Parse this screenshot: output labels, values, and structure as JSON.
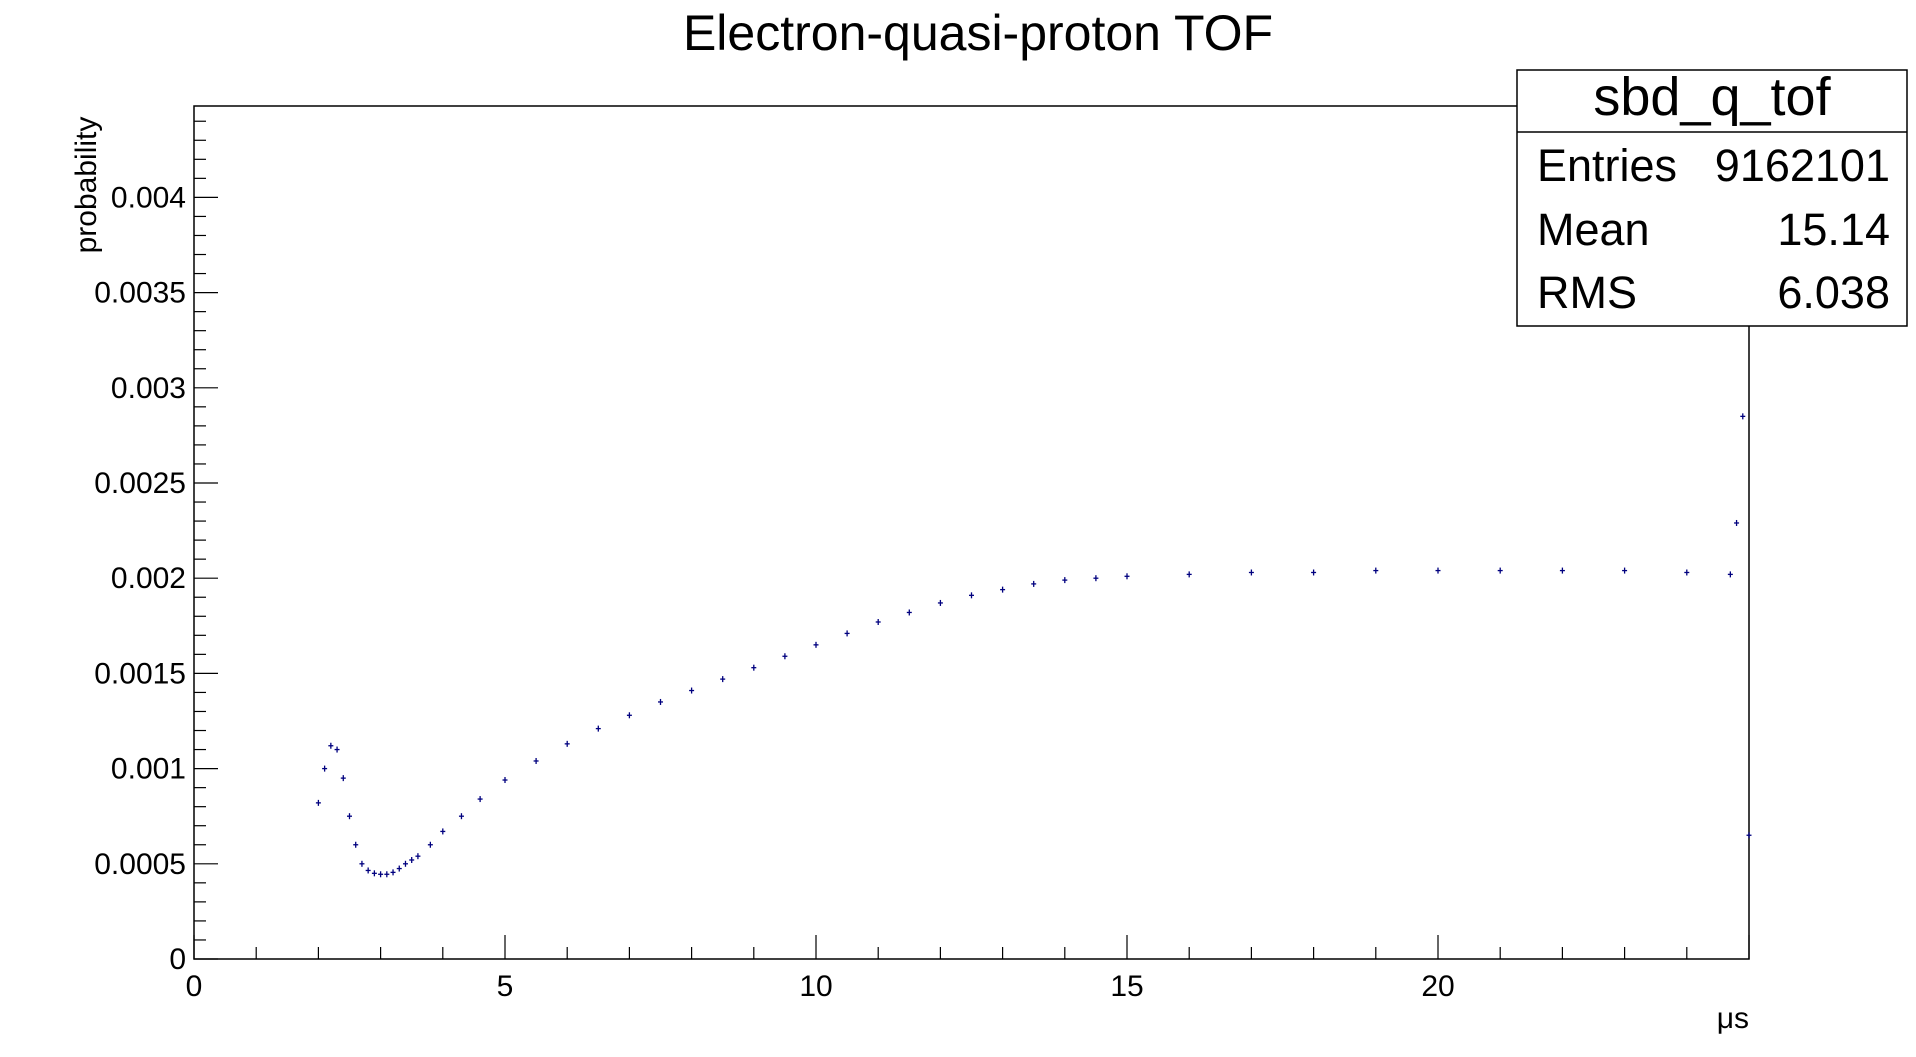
{
  "chart_data": {
    "type": "scatter",
    "title": "Electron-quasi-proton TOF",
    "xlabel": "μs",
    "ylabel": "probability",
    "xlim": [
      0,
      25
    ],
    "ylim": [
      0,
      0.00448
    ],
    "grid": false,
    "legend": "none",
    "marker_color": "#00007f",
    "x_ticks": [
      {
        "value": 0,
        "label": "0"
      },
      {
        "value": 5,
        "label": "5"
      },
      {
        "value": 10,
        "label": "10"
      },
      {
        "value": 15,
        "label": "15"
      },
      {
        "value": 20,
        "label": "20"
      }
    ],
    "y_ticks": [
      {
        "value": 0,
        "label": "0"
      },
      {
        "value": 0.0005,
        "label": "0.0005"
      },
      {
        "value": 0.001,
        "label": "0.001"
      },
      {
        "value": 0.0015,
        "label": "0.0015"
      },
      {
        "value": 0.002,
        "label": "0.002"
      },
      {
        "value": 0.0025,
        "label": "0.0025"
      },
      {
        "value": 0.003,
        "label": "0.003"
      },
      {
        "value": 0.0035,
        "label": "0.0035"
      },
      {
        "value": 0.004,
        "label": "0.004"
      }
    ],
    "stats": {
      "name": "sbd_q_tof",
      "rows": [
        {
          "label": "Entries",
          "value": "9162101"
        },
        {
          "label": "Mean",
          "value": "15.14"
        },
        {
          "label": "RMS",
          "value": "6.038"
        }
      ]
    },
    "series": [
      {
        "x": [
          2.0,
          2.1,
          2.2,
          2.3,
          2.4,
          2.5,
          2.6,
          2.7,
          2.8,
          2.9,
          3.0,
          3.1,
          3.2,
          3.3,
          3.4,
          3.5,
          3.6,
          3.8,
          4.0,
          4.3,
          4.6,
          5.0,
          5.5,
          6.0,
          6.5,
          7.0,
          7.5,
          8.0,
          8.5,
          9.0,
          9.5,
          10.0,
          10.5,
          11.0,
          11.5,
          12.0,
          12.5,
          13.0,
          13.5,
          14.0,
          14.5,
          15.0,
          16.0,
          17.0,
          18.0,
          19.0,
          20.0,
          21.0,
          22.0,
          23.0,
          24.0,
          24.7,
          24.8,
          24.9,
          25.0
        ],
        "y": [
          0.00082,
          0.001,
          0.00112,
          0.0011,
          0.00095,
          0.00075,
          0.0006,
          0.0005,
          0.000465,
          0.00045,
          0.000445,
          0.000445,
          0.000455,
          0.000475,
          0.0005,
          0.00052,
          0.00054,
          0.0006,
          0.00067,
          0.00075,
          0.00084,
          0.00094,
          0.00104,
          0.00113,
          0.00121,
          0.00128,
          0.00135,
          0.00141,
          0.00147,
          0.00153,
          0.00159,
          0.00165,
          0.00171,
          0.00177,
          0.00182,
          0.00187,
          0.00191,
          0.00194,
          0.00197,
          0.00199,
          0.002,
          0.00201,
          0.00202,
          0.00203,
          0.00203,
          0.00204,
          0.00204,
          0.00204,
          0.00204,
          0.00204,
          0.00203,
          0.00202,
          0.00229,
          0.00285,
          0.00065
        ]
      }
    ]
  }
}
